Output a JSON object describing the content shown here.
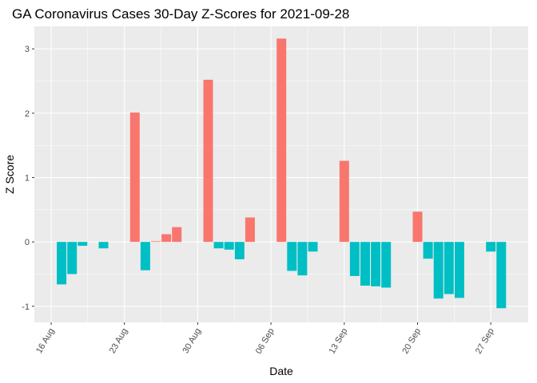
{
  "chart_data": {
    "type": "bar",
    "title": "GA Coronavirus Cases 30-Day Z-Scores for 2021-09-28",
    "xlabel": "Date",
    "ylabel": "Z Score",
    "x_start": "2021-08-17",
    "x_end": "2021-09-28",
    "ylim": [
      -1.25,
      3.35
    ],
    "yticks": [
      -1,
      0,
      1,
      2,
      3
    ],
    "xticks": [
      {
        "date": "2021-08-16",
        "label": "16 Aug"
      },
      {
        "date": "2021-08-23",
        "label": "23 Aug"
      },
      {
        "date": "2021-08-30",
        "label": "30 Aug"
      },
      {
        "date": "2021-09-06",
        "label": "06 Sep"
      },
      {
        "date": "2021-09-13",
        "label": "13 Sep"
      },
      {
        "date": "2021-09-20",
        "label": "20 Sep"
      },
      {
        "date": "2021-09-27",
        "label": "27 Sep"
      }
    ],
    "grid": true,
    "legend": "none",
    "colors": {
      "positive": "#F8766D",
      "negative": "#00BFC4",
      "panel": "#EBEBEB",
      "grid": "#FFFFFF"
    },
    "values": [
      -0.66,
      -0.5,
      -0.06,
      0,
      -0.1,
      0,
      0,
      2.01,
      -0.44,
      0.01,
      0.12,
      0.23,
      0,
      0,
      2.52,
      -0.1,
      -0.12,
      -0.27,
      0.38,
      0,
      0,
      3.16,
      -0.45,
      -0.52,
      -0.15,
      0,
      0,
      1.26,
      -0.53,
      -0.68,
      -0.69,
      -0.71,
      0,
      0,
      0.47,
      -0.26,
      -0.88,
      -0.81,
      -0.87,
      0,
      0,
      -0.15,
      -1.03
    ]
  }
}
